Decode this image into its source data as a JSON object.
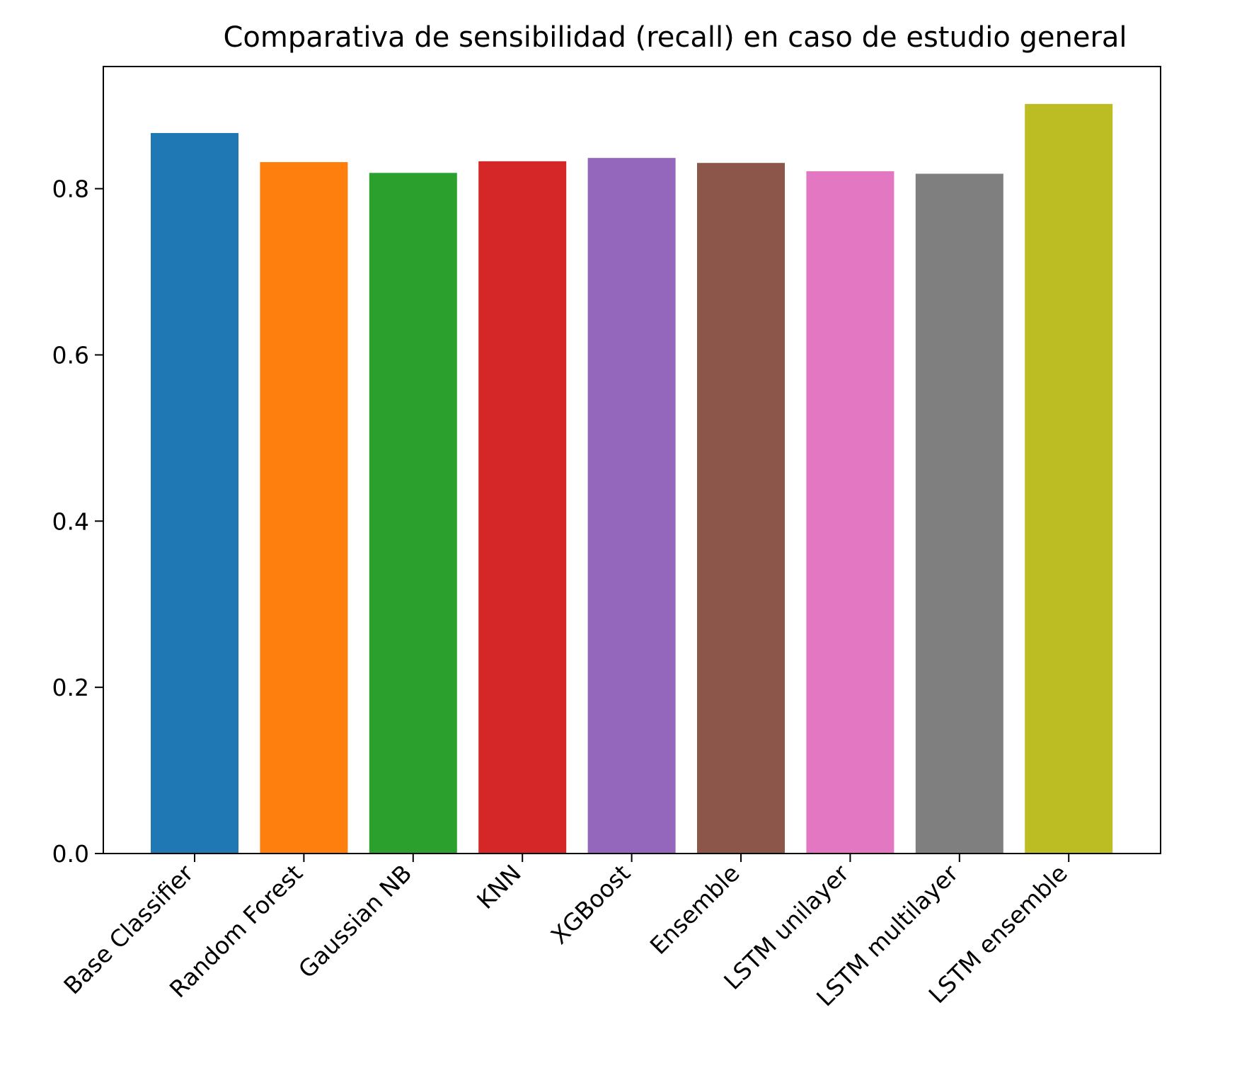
{
  "chart_data": {
    "type": "bar",
    "title": "Comparativa de sensibilidad (recall) en caso de estudio general",
    "xlabel": "",
    "ylabel": "",
    "categories": [
      "Base Classifier",
      "Random Forest",
      "Gaussian NB",
      "KNN",
      "XGBoost",
      "Ensemble",
      "LSTM unilayer",
      "LSTM multilayer",
      "LSTM ensemble"
    ],
    "values": [
      0.867,
      0.832,
      0.819,
      0.833,
      0.837,
      0.831,
      0.821,
      0.818,
      0.902
    ],
    "colors": [
      "#1f77b4",
      "#ff7f0e",
      "#2ca02c",
      "#d62728",
      "#9467bd",
      "#8c564b",
      "#e377c2",
      "#7f7f7f",
      "#bcbd22"
    ],
    "ylim": [
      0,
      0.947
    ],
    "yticks": [
      "0.0",
      "0.2",
      "0.4",
      "0.6",
      "0.8"
    ],
    "grid": false,
    "legend": "none"
  }
}
